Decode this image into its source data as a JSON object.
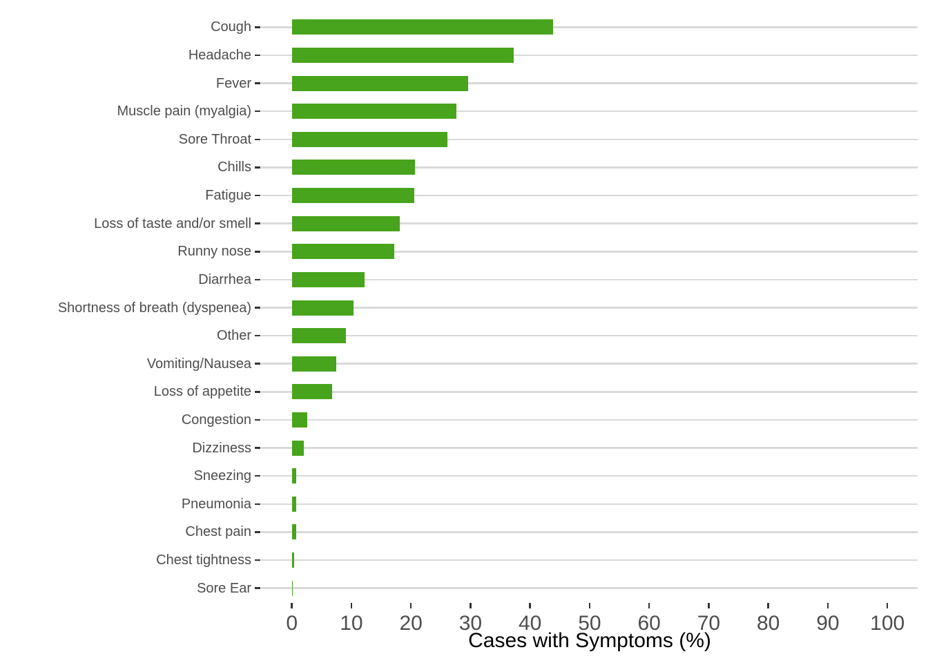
{
  "chart_data": {
    "type": "bar",
    "orientation": "horizontal",
    "title": "",
    "xlabel": "Cases with Symptoms (%)",
    "ylabel": "",
    "xlim": [
      0,
      100
    ],
    "xticks": [
      0,
      10,
      20,
      30,
      40,
      50,
      60,
      70,
      80,
      90,
      100
    ],
    "grid": "horizontal-major-only",
    "legend": "none",
    "categories": [
      "Cough",
      "Headache",
      "Fever",
      "Muscle pain (myalgia)",
      "Sore Throat",
      "Chills",
      "Fatigue",
      "Loss of taste and/or smell",
      "Runny nose",
      "Diarrhea",
      "Shortness of breath (dyspenea)",
      "Other",
      "Vomiting/Nausea",
      "Loss of appetite",
      "Congestion",
      "Dizziness",
      "Sneezing",
      "Pneumonia",
      "Chest pain",
      "Chest tightness",
      "Sore Ear"
    ],
    "values": [
      43.9,
      37.2,
      29.6,
      27.6,
      26.1,
      20.7,
      20.5,
      18.1,
      17.2,
      12.2,
      10.4,
      9.1,
      7.5,
      6.8,
      2.6,
      2.0,
      0.7,
      0.7,
      0.7,
      0.4,
      0.2
    ],
    "colors": {
      "bar": "#47a41c",
      "gridline": "#d9d9d9",
      "tick_mark": "#333333",
      "axis_text": "#4d4d4d",
      "axis_title": "#000000",
      "background": "#ffffff"
    }
  }
}
